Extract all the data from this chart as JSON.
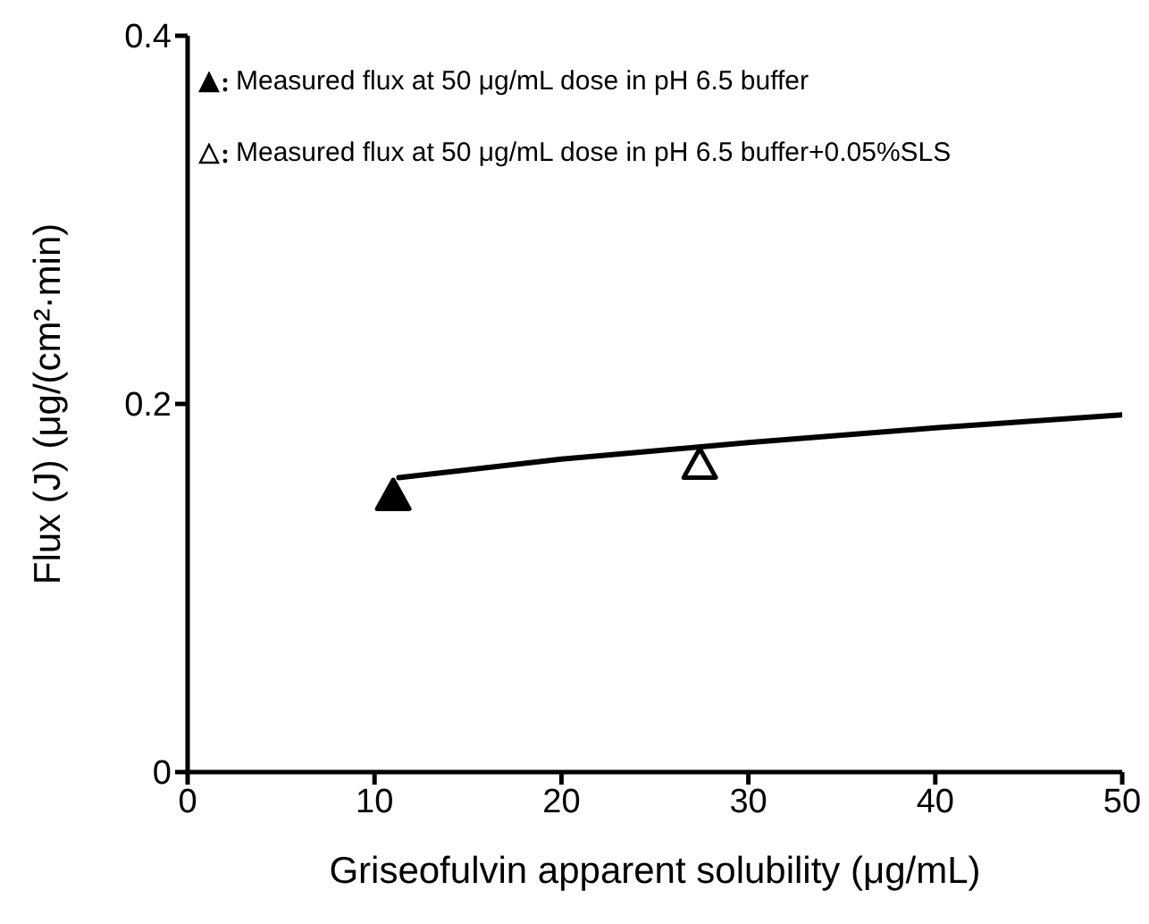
{
  "chart_data": {
    "type": "scatter",
    "xlabel": "Griseofulvin apparent solubility (μg/mL)",
    "ylabel": "Flux (J) (μg/(cm²·min)",
    "xlim": [
      0,
      50
    ],
    "xticks": [
      0,
      10,
      20,
      30,
      40,
      50
    ],
    "ylim": [
      0,
      0.4
    ],
    "yticks": [
      0,
      0.2,
      0.4
    ],
    "marker": "triangle",
    "legend": "top left",
    "grid": false,
    "series": [
      {
        "type": "line",
        "color": "#000000",
        "marker": "none",
        "x": [
          11.3,
          20,
          30,
          40,
          50
        ],
        "values": [
          0.16,
          0.17,
          0.179,
          0.187,
          0.194
        ]
      },
      {
        "name": "Measured flux at 50 μg/mL dose in pH 6.5 buffer",
        "color": "#000000",
        "x": [
          11.0
        ],
        "values": [
          0.15
        ]
      },
      {
        "name": "Measured flux at 50 μg/mL dose in pH 6.5 buffer+0.05%SLS",
        "color": "#ffffff",
        "x": [
          27.4
        ],
        "values": [
          0.167
        ]
      }
    ]
  }
}
